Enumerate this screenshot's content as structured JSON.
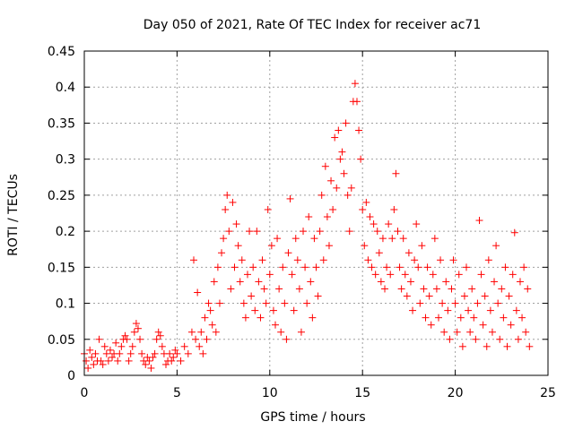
{
  "chart_data": {
    "type": "scatter",
    "title": "Day 050 of 2021, Rate Of TEC Index for receiver ac71",
    "xlabel": "GPS time / hours",
    "ylabel": "ROTI / TECUs",
    "xlim": [
      0,
      25
    ],
    "ylim": [
      0,
      0.45
    ],
    "xticks": [
      0,
      5,
      10,
      15,
      20,
      25
    ],
    "xtick_labels": [
      "0",
      "5",
      "10",
      "15",
      "20",
      "25"
    ],
    "yticks": [
      0,
      0.05,
      0.1,
      0.15,
      0.2,
      0.25,
      0.3,
      0.35,
      0.4,
      0.45
    ],
    "ytick_labels": [
      "0",
      "0.05",
      "0.1",
      "0.15",
      "0.2",
      "0.25",
      "0.3",
      "0.35",
      "0.4",
      "0.45"
    ],
    "grid": true,
    "marker": "+",
    "marker_color": "#ff0000",
    "series": [
      {
        "values": [
          [
            0.0,
            0.03
          ],
          [
            0.1,
            0.02
          ],
          [
            0.2,
            0.01
          ],
          [
            0.3,
            0.035
          ],
          [
            0.4,
            0.025
          ],
          [
            0.5,
            0.015
          ],
          [
            0.6,
            0.03
          ],
          [
            0.7,
            0.02
          ],
          [
            0.8,
            0.05
          ],
          [
            0.9,
            0.02
          ],
          [
            1.0,
            0.015
          ],
          [
            1.1,
            0.04
          ],
          [
            1.2,
            0.03
          ],
          [
            1.3,
            0.02
          ],
          [
            1.4,
            0.035
          ],
          [
            1.5,
            0.025
          ],
          [
            1.6,
            0.03
          ],
          [
            1.7,
            0.045
          ],
          [
            1.8,
            0.02
          ],
          [
            1.9,
            0.03
          ],
          [
            2.0,
            0.04
          ],
          [
            2.1,
            0.05
          ],
          [
            2.2,
            0.055
          ],
          [
            2.3,
            0.05
          ],
          [
            2.4,
            0.02
          ],
          [
            2.5,
            0.03
          ],
          [
            2.6,
            0.04
          ],
          [
            2.7,
            0.06
          ],
          [
            2.8,
            0.072
          ],
          [
            2.9,
            0.065
          ],
          [
            3.0,
            0.05
          ],
          [
            3.1,
            0.03
          ],
          [
            3.2,
            0.02
          ],
          [
            3.3,
            0.015
          ],
          [
            3.4,
            0.025
          ],
          [
            3.5,
            0.02
          ],
          [
            3.6,
            0.01
          ],
          [
            3.7,
            0.025
          ],
          [
            3.8,
            0.03
          ],
          [
            3.9,
            0.05
          ],
          [
            4.0,
            0.06
          ],
          [
            4.1,
            0.055
          ],
          [
            4.2,
            0.04
          ],
          [
            4.3,
            0.03
          ],
          [
            4.4,
            0.015
          ],
          [
            4.5,
            0.02
          ],
          [
            4.6,
            0.03
          ],
          [
            4.7,
            0.02
          ],
          [
            4.8,
            0.025
          ],
          [
            4.9,
            0.035
          ],
          [
            5.0,
            0.03
          ],
          [
            5.2,
            0.02
          ],
          [
            5.4,
            0.04
          ],
          [
            5.6,
            0.03
          ],
          [
            5.8,
            0.06
          ],
          [
            5.9,
            0.16
          ],
          [
            6.0,
            0.05
          ],
          [
            6.1,
            0.115
          ],
          [
            6.2,
            0.04
          ],
          [
            6.3,
            0.06
          ],
          [
            6.4,
            0.03
          ],
          [
            6.5,
            0.08
          ],
          [
            6.6,
            0.05
          ],
          [
            6.7,
            0.1
          ],
          [
            6.8,
            0.09
          ],
          [
            6.9,
            0.07
          ],
          [
            7.0,
            0.13
          ],
          [
            7.1,
            0.06
          ],
          [
            7.2,
            0.15
          ],
          [
            7.3,
            0.1
          ],
          [
            7.4,
            0.17
          ],
          [
            7.5,
            0.19
          ],
          [
            7.6,
            0.23
          ],
          [
            7.7,
            0.25
          ],
          [
            7.8,
            0.2
          ],
          [
            7.9,
            0.12
          ],
          [
            8.0,
            0.24
          ],
          [
            8.1,
            0.15
          ],
          [
            8.2,
            0.21
          ],
          [
            8.3,
            0.18
          ],
          [
            8.4,
            0.13
          ],
          [
            8.5,
            0.16
          ],
          [
            8.6,
            0.1
          ],
          [
            8.7,
            0.08
          ],
          [
            8.8,
            0.14
          ],
          [
            8.9,
            0.2
          ],
          [
            9.0,
            0.11
          ],
          [
            9.1,
            0.15
          ],
          [
            9.2,
            0.09
          ],
          [
            9.3,
            0.2
          ],
          [
            9.4,
            0.13
          ],
          [
            9.5,
            0.08
          ],
          [
            9.6,
            0.16
          ],
          [
            9.7,
            0.12
          ],
          [
            9.8,
            0.1
          ],
          [
            9.9,
            0.23
          ],
          [
            10.0,
            0.14
          ],
          [
            10.1,
            0.18
          ],
          [
            10.2,
            0.09
          ],
          [
            10.3,
            0.07
          ],
          [
            10.4,
            0.19
          ],
          [
            10.5,
            0.12
          ],
          [
            10.6,
            0.06
          ],
          [
            10.7,
            0.15
          ],
          [
            10.8,
            0.1
          ],
          [
            10.9,
            0.05
          ],
          [
            11.0,
            0.17
          ],
          [
            11.1,
            0.245
          ],
          [
            11.2,
            0.14
          ],
          [
            11.3,
            0.09
          ],
          [
            11.4,
            0.19
          ],
          [
            11.5,
            0.16
          ],
          [
            11.6,
            0.12
          ],
          [
            11.7,
            0.06
          ],
          [
            11.8,
            0.2
          ],
          [
            11.9,
            0.15
          ],
          [
            12.0,
            0.1
          ],
          [
            12.1,
            0.22
          ],
          [
            12.2,
            0.13
          ],
          [
            12.3,
            0.08
          ],
          [
            12.4,
            0.19
          ],
          [
            12.5,
            0.15
          ],
          [
            12.6,
            0.11
          ],
          [
            12.7,
            0.2
          ],
          [
            12.8,
            0.25
          ],
          [
            12.9,
            0.16
          ],
          [
            13.0,
            0.29
          ],
          [
            13.1,
            0.22
          ],
          [
            13.2,
            0.18
          ],
          [
            13.3,
            0.27
          ],
          [
            13.4,
            0.23
          ],
          [
            13.5,
            0.33
          ],
          [
            13.6,
            0.26
          ],
          [
            13.7,
            0.34
          ],
          [
            13.8,
            0.3
          ],
          [
            13.9,
            0.31
          ],
          [
            14.0,
            0.28
          ],
          [
            14.1,
            0.35
          ],
          [
            14.2,
            0.25
          ],
          [
            14.3,
            0.2
          ],
          [
            14.4,
            0.26
          ],
          [
            14.5,
            0.38
          ],
          [
            14.6,
            0.405
          ],
          [
            14.7,
            0.38
          ],
          [
            14.8,
            0.34
          ],
          [
            14.9,
            0.3
          ],
          [
            15.0,
            0.23
          ],
          [
            15.1,
            0.18
          ],
          [
            15.2,
            0.24
          ],
          [
            15.3,
            0.16
          ],
          [
            15.4,
            0.22
          ],
          [
            15.5,
            0.15
          ],
          [
            15.6,
            0.21
          ],
          [
            15.7,
            0.14
          ],
          [
            15.8,
            0.2
          ],
          [
            15.9,
            0.17
          ],
          [
            16.0,
            0.13
          ],
          [
            16.1,
            0.19
          ],
          [
            16.2,
            0.12
          ],
          [
            16.3,
            0.15
          ],
          [
            16.4,
            0.21
          ],
          [
            16.5,
            0.14
          ],
          [
            16.6,
            0.19
          ],
          [
            16.7,
            0.23
          ],
          [
            16.8,
            0.28
          ],
          [
            16.9,
            0.2
          ],
          [
            17.0,
            0.15
          ],
          [
            17.1,
            0.12
          ],
          [
            17.2,
            0.19
          ],
          [
            17.3,
            0.14
          ],
          [
            17.4,
            0.11
          ],
          [
            17.5,
            0.17
          ],
          [
            17.6,
            0.13
          ],
          [
            17.7,
            0.09
          ],
          [
            17.8,
            0.16
          ],
          [
            17.9,
            0.21
          ],
          [
            18.0,
            0.15
          ],
          [
            18.1,
            0.1
          ],
          [
            18.2,
            0.18
          ],
          [
            18.3,
            0.12
          ],
          [
            18.4,
            0.08
          ],
          [
            18.5,
            0.15
          ],
          [
            18.6,
            0.11
          ],
          [
            18.7,
            0.07
          ],
          [
            18.8,
            0.14
          ],
          [
            18.9,
            0.19
          ],
          [
            19.0,
            0.12
          ],
          [
            19.1,
            0.08
          ],
          [
            19.2,
            0.16
          ],
          [
            19.3,
            0.1
          ],
          [
            19.4,
            0.06
          ],
          [
            19.5,
            0.13
          ],
          [
            19.6,
            0.09
          ],
          [
            19.7,
            0.05
          ],
          [
            19.8,
            0.12
          ],
          [
            19.9,
            0.16
          ],
          [
            20.0,
            0.1
          ],
          [
            20.1,
            0.06
          ],
          [
            20.2,
            0.14
          ],
          [
            20.3,
            0.08
          ],
          [
            20.4,
            0.04
          ],
          [
            20.5,
            0.11
          ],
          [
            20.6,
            0.15
          ],
          [
            20.7,
            0.09
          ],
          [
            20.8,
            0.06
          ],
          [
            20.9,
            0.12
          ],
          [
            21.0,
            0.08
          ],
          [
            21.1,
            0.05
          ],
          [
            21.2,
            0.1
          ],
          [
            21.3,
            0.215
          ],
          [
            21.4,
            0.14
          ],
          [
            21.5,
            0.07
          ],
          [
            21.6,
            0.11
          ],
          [
            21.7,
            0.04
          ],
          [
            21.8,
            0.16
          ],
          [
            21.9,
            0.09
          ],
          [
            22.0,
            0.06
          ],
          [
            22.1,
            0.13
          ],
          [
            22.2,
            0.18
          ],
          [
            22.3,
            0.1
          ],
          [
            22.4,
            0.05
          ],
          [
            22.5,
            0.12
          ],
          [
            22.6,
            0.08
          ],
          [
            22.7,
            0.15
          ],
          [
            22.8,
            0.04
          ],
          [
            22.9,
            0.11
          ],
          [
            23.0,
            0.07
          ],
          [
            23.1,
            0.14
          ],
          [
            23.2,
            0.198
          ],
          [
            23.3,
            0.09
          ],
          [
            23.4,
            0.05
          ],
          [
            23.5,
            0.13
          ],
          [
            23.6,
            0.08
          ],
          [
            23.7,
            0.15
          ],
          [
            23.8,
            0.06
          ],
          [
            23.9,
            0.12
          ],
          [
            24.0,
            0.04
          ]
        ]
      }
    ]
  }
}
